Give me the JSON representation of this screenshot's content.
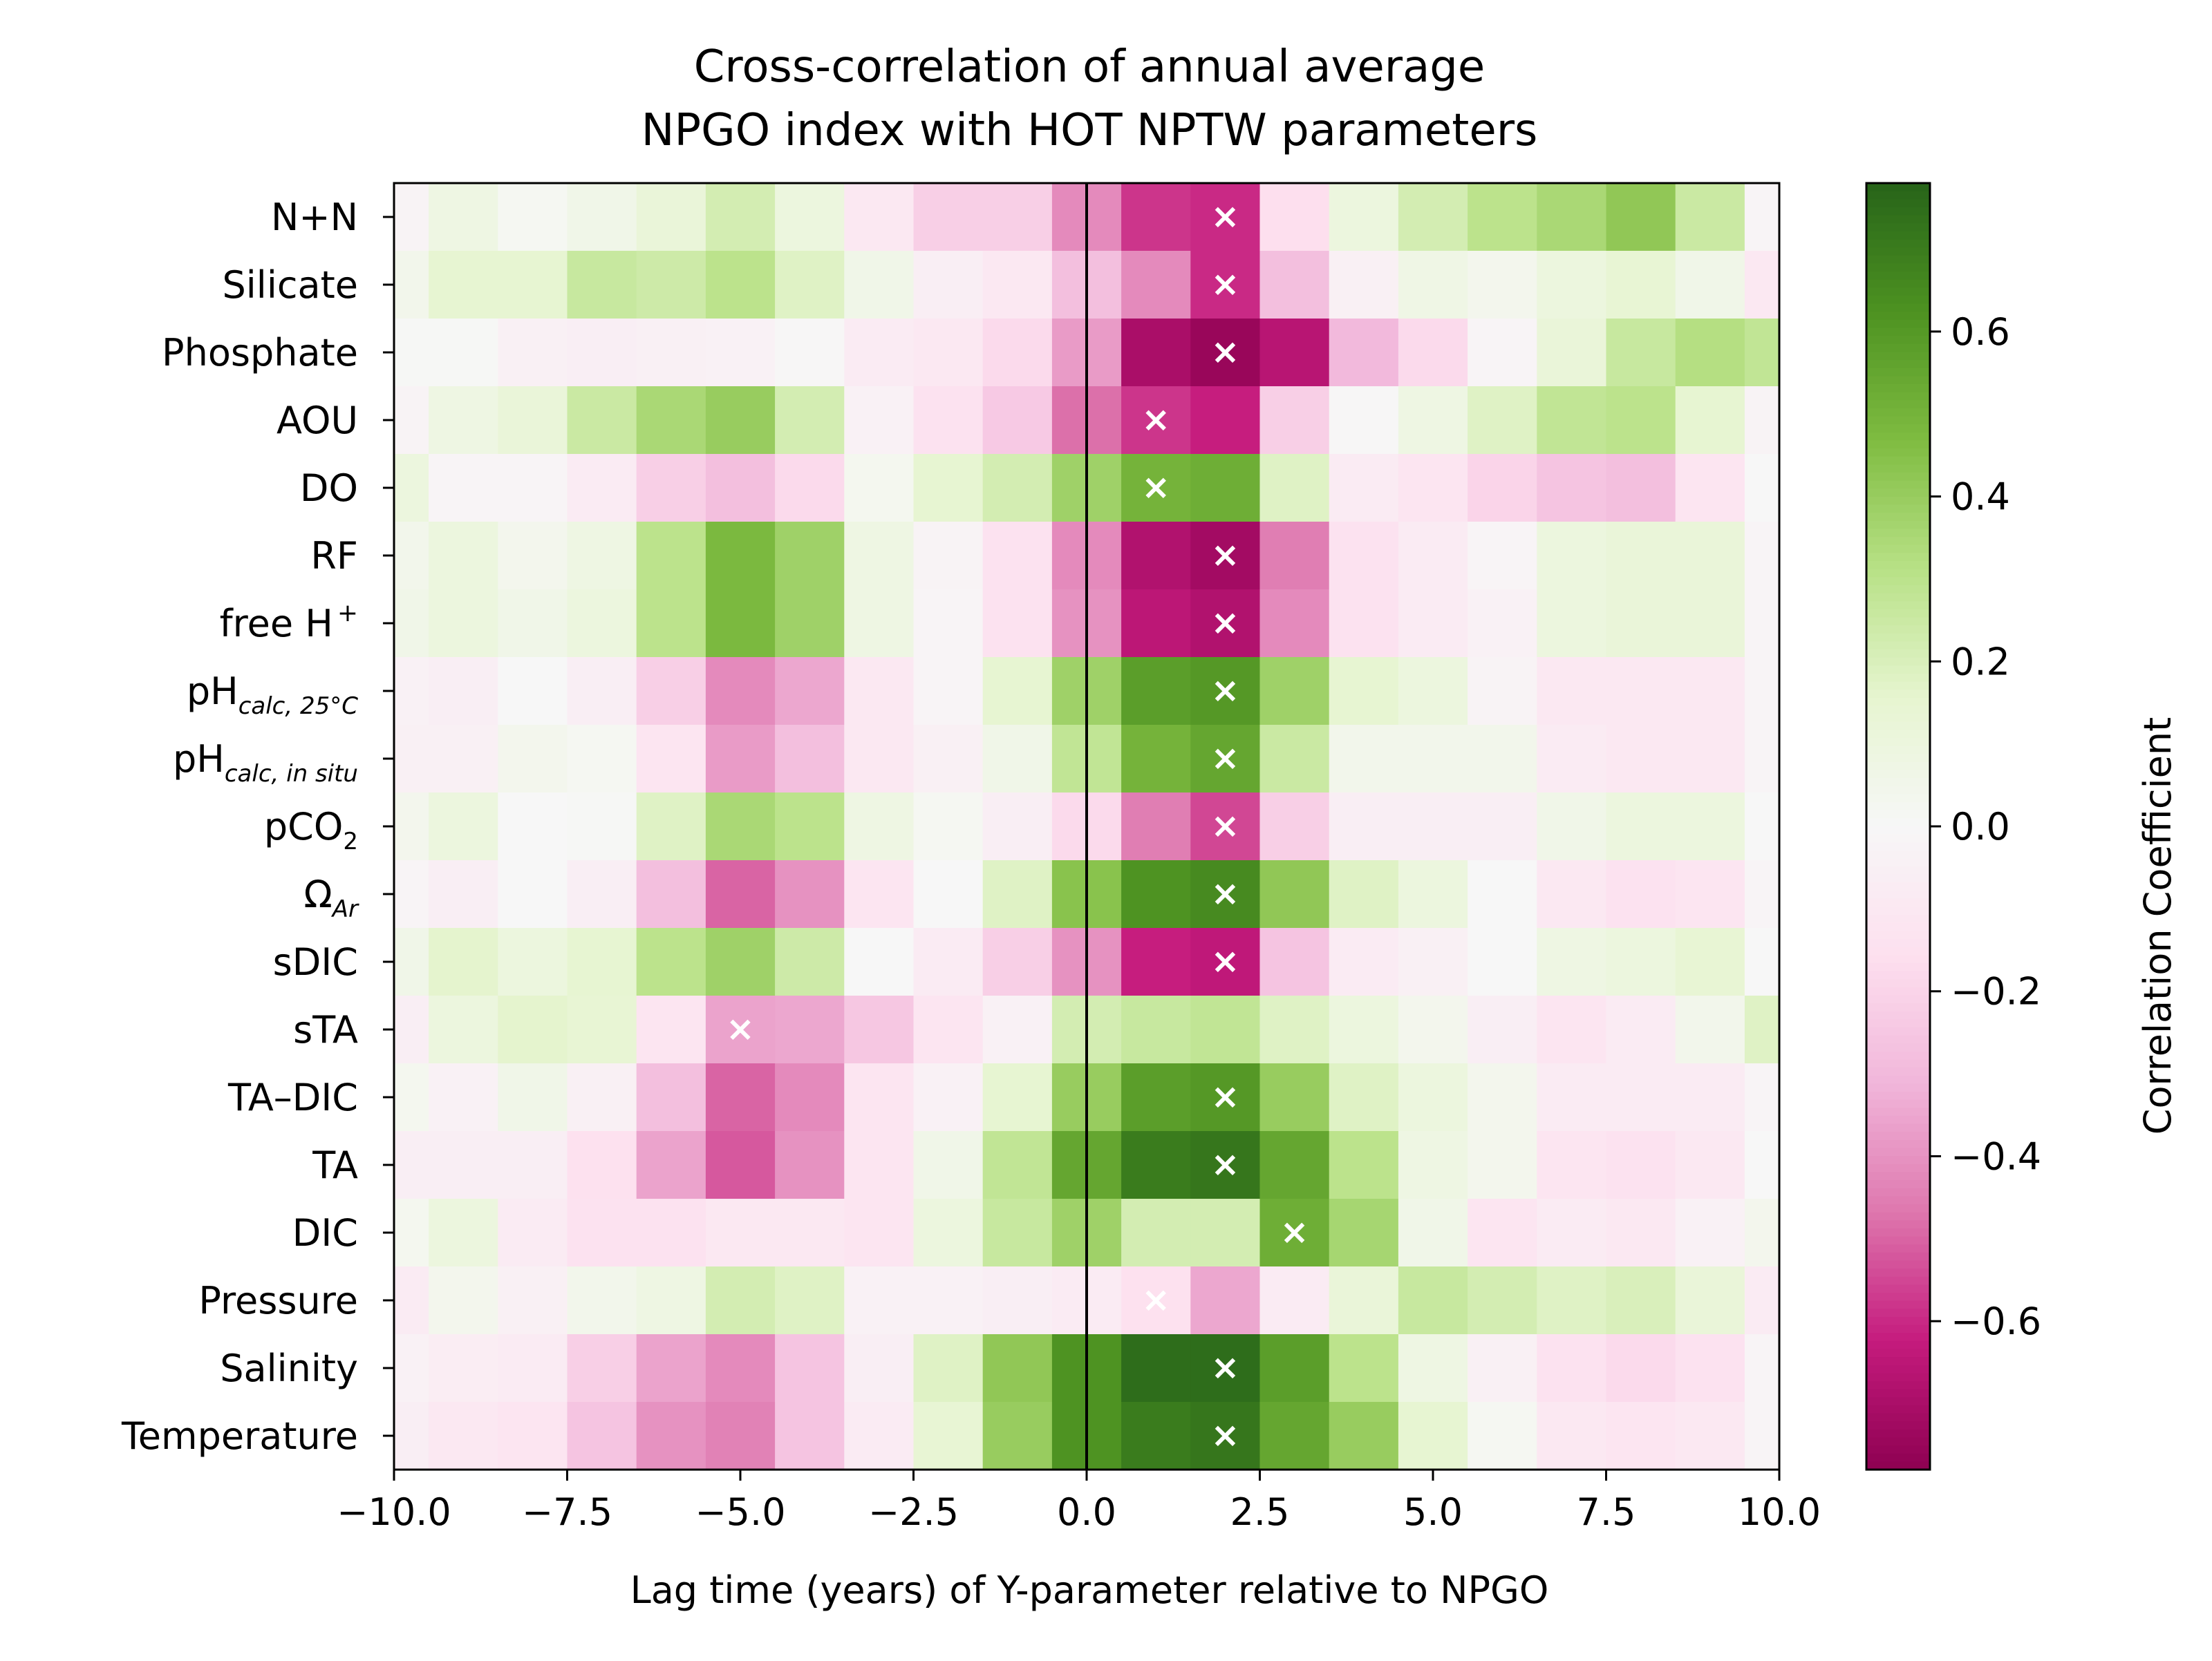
{
  "chart_data": {
    "type": "heatmap",
    "title_line1": "Cross-correlation of annual average",
    "title_line2": "NPGO index with HOT NPTW parameters",
    "xlabel": "Lag time (years) of Y-parameter relative to NPGO",
    "colorbar_label": "Correlation Coefficient",
    "colormap": "PiYG",
    "vmin": -0.78,
    "vmax": 0.78,
    "xlim": [
      -10,
      10
    ],
    "x_ticks": [
      -10,
      -7.5,
      -5,
      -2.5,
      0,
      2.5,
      5,
      7.5,
      10
    ],
    "x_tick_labels": [
      "−10.0",
      "−7.5",
      "−5.0",
      "−2.5",
      "0.0",
      "2.5",
      "5.0",
      "7.5",
      "10.0"
    ],
    "colorbar_ticks": [
      -0.6,
      -0.4,
      -0.2,
      0.0,
      0.2,
      0.4,
      0.6
    ],
    "colorbar_tick_labels": [
      "−0.6",
      "−0.4",
      "−0.2",
      "0.0",
      "0.2",
      "0.4",
      "0.6"
    ],
    "lags": [
      -10,
      -9,
      -8,
      -7,
      -6,
      -5,
      -4,
      -3,
      -2,
      -1,
      0,
      1,
      2,
      3,
      4,
      5,
      6,
      7,
      8,
      9,
      10
    ],
    "marker_symbol": "×",
    "rows": [
      {
        "label": "N+N",
        "sub": "",
        "sup": "",
        "values": [
          -0.03,
          0.08,
          0.02,
          0.06,
          0.12,
          0.22,
          0.1,
          -0.1,
          -0.22,
          -0.22,
          -0.42,
          -0.58,
          -0.6,
          -0.16,
          0.1,
          0.22,
          0.3,
          0.35,
          0.42,
          0.25,
          -0.02
        ],
        "marker_lag": 2
      },
      {
        "label": "Silicate",
        "sub": "",
        "sup": "",
        "values": [
          0.05,
          0.15,
          0.15,
          0.26,
          0.24,
          0.3,
          0.18,
          0.06,
          -0.06,
          -0.1,
          -0.28,
          -0.42,
          -0.6,
          -0.28,
          -0.05,
          0.07,
          0.04,
          0.1,
          0.14,
          0.06,
          -0.1
        ],
        "marker_lag": 2
      },
      {
        "label": "Phosphate",
        "sub": "",
        "sup": "",
        "values": [
          0.01,
          0.01,
          -0.05,
          -0.06,
          -0.05,
          -0.04,
          -0.01,
          -0.08,
          -0.1,
          -0.18,
          -0.38,
          -0.7,
          -0.75,
          -0.66,
          -0.3,
          -0.18,
          -0.02,
          0.12,
          0.26,
          0.32,
          0.28
        ],
        "marker_lag": 2
      },
      {
        "label": "AOU",
        "sub": "",
        "sup": "",
        "values": [
          -0.03,
          0.08,
          0.12,
          0.25,
          0.35,
          0.4,
          0.22,
          -0.04,
          -0.14,
          -0.24,
          -0.48,
          -0.58,
          -0.62,
          -0.22,
          -0.01,
          0.08,
          0.18,
          0.28,
          0.3,
          0.15,
          -0.03
        ],
        "marker_lag": 1
      },
      {
        "label": "DO",
        "sub": "",
        "sup": "",
        "values": [
          0.1,
          -0.02,
          -0.02,
          -0.08,
          -0.22,
          -0.28,
          -0.18,
          0.03,
          0.15,
          0.22,
          0.38,
          0.5,
          0.52,
          0.18,
          -0.08,
          -0.12,
          -0.2,
          -0.26,
          -0.28,
          -0.12,
          0.0
        ],
        "marker_lag": 1
      },
      {
        "label": "RF",
        "sub": "",
        "sup": "",
        "values": [
          0.05,
          0.1,
          0.04,
          0.08,
          0.3,
          0.48,
          0.38,
          0.08,
          -0.03,
          -0.14,
          -0.42,
          -0.68,
          -0.72,
          -0.45,
          -0.14,
          -0.08,
          -0.02,
          0.1,
          0.12,
          0.12,
          -0.02
        ],
        "marker_lag": 2
      },
      {
        "label": "free H",
        "sub": "",
        "sup": "+",
        "values": [
          0.06,
          0.1,
          0.06,
          0.1,
          0.3,
          0.48,
          0.38,
          0.08,
          -0.02,
          -0.14,
          -0.4,
          -0.65,
          -0.68,
          -0.42,
          -0.14,
          -0.08,
          -0.04,
          0.1,
          0.12,
          0.12,
          -0.02
        ],
        "marker_lag": 2
      },
      {
        "label": "pH",
        "sub": "calc, 25°C",
        "sup": "",
        "values": [
          -0.04,
          -0.06,
          0.0,
          -0.06,
          -0.22,
          -0.42,
          -0.35,
          -0.1,
          -0.02,
          0.15,
          0.38,
          0.58,
          0.6,
          0.38,
          0.15,
          0.1,
          -0.03,
          -0.1,
          -0.1,
          -0.1,
          -0.02
        ],
        "marker_lag": 2
      },
      {
        "label": "pH",
        "sub": "calc, in situ",
        "sup": "",
        "values": [
          -0.05,
          -0.05,
          0.04,
          0.02,
          -0.12,
          -0.38,
          -0.28,
          -0.1,
          -0.05,
          0.06,
          0.28,
          0.5,
          0.55,
          0.25,
          0.05,
          0.05,
          0.05,
          -0.08,
          -0.1,
          -0.1,
          -0.02
        ],
        "marker_lag": 2
      },
      {
        "label": "pCO",
        "sub": "2",
        "sup": "",
        "values": [
          0.04,
          0.1,
          0.0,
          0.01,
          0.18,
          0.35,
          0.3,
          0.08,
          0.02,
          -0.06,
          -0.18,
          -0.45,
          -0.55,
          -0.22,
          -0.06,
          -0.06,
          -0.06,
          0.06,
          0.1,
          0.1,
          0.0
        ],
        "marker_lag": 2
      },
      {
        "label": "Ω",
        "sub": "Ar",
        "sup": "",
        "values": [
          -0.02,
          -0.06,
          0.0,
          -0.06,
          -0.28,
          -0.5,
          -0.4,
          -0.12,
          0.0,
          0.18,
          0.44,
          0.62,
          0.65,
          0.42,
          0.18,
          0.1,
          0.0,
          -0.1,
          -0.14,
          -0.12,
          -0.02
        ],
        "marker_lag": 2
      },
      {
        "label": "sDIC",
        "sub": "",
        "sup": "",
        "values": [
          0.06,
          0.16,
          0.1,
          0.15,
          0.3,
          0.38,
          0.24,
          0.0,
          -0.08,
          -0.22,
          -0.4,
          -0.62,
          -0.64,
          -0.26,
          -0.08,
          -0.05,
          0.0,
          0.08,
          0.1,
          0.14,
          0.0
        ],
        "marker_lag": 2
      },
      {
        "label": "sTA",
        "sub": "",
        "sup": "",
        "values": [
          -0.06,
          0.1,
          0.16,
          0.14,
          -0.12,
          -0.36,
          -0.35,
          -0.25,
          -0.12,
          -0.04,
          0.22,
          0.26,
          0.28,
          0.18,
          0.1,
          0.04,
          -0.06,
          -0.12,
          -0.08,
          0.05,
          0.18
        ],
        "marker_lag": -5
      },
      {
        "label": "TA–DIC",
        "sub": "",
        "sup": "",
        "values": [
          0.03,
          -0.04,
          0.06,
          -0.05,
          -0.28,
          -0.5,
          -0.42,
          -0.12,
          -0.04,
          0.15,
          0.4,
          0.58,
          0.6,
          0.4,
          0.18,
          0.1,
          0.04,
          -0.08,
          -0.08,
          -0.08,
          -0.02
        ],
        "marker_lag": 2
      },
      {
        "label": "TA",
        "sub": "",
        "sup": "",
        "values": [
          -0.06,
          -0.06,
          -0.06,
          -0.15,
          -0.36,
          -0.52,
          -0.4,
          -0.12,
          0.06,
          0.28,
          0.55,
          0.7,
          0.72,
          0.55,
          0.3,
          0.08,
          0.04,
          -0.12,
          -0.14,
          -0.1,
          0.0
        ],
        "marker_lag": 2
      },
      {
        "label": "DIC",
        "sub": "",
        "sup": "",
        "values": [
          0.03,
          0.1,
          -0.08,
          -0.14,
          -0.14,
          -0.1,
          -0.1,
          -0.12,
          0.1,
          0.26,
          0.38,
          0.22,
          0.22,
          0.52,
          0.36,
          0.06,
          -0.12,
          -0.08,
          -0.1,
          -0.04,
          0.04
        ],
        "marker_lag": 3
      },
      {
        "label": "Pressure",
        "sub": "",
        "sup": "",
        "values": [
          -0.08,
          0.04,
          -0.05,
          0.05,
          0.08,
          0.22,
          0.18,
          -0.04,
          -0.04,
          -0.06,
          -0.08,
          -0.15,
          -0.35,
          -0.08,
          0.12,
          0.26,
          0.22,
          0.18,
          0.2,
          0.12,
          -0.08
        ],
        "marker_lag": 1
      },
      {
        "label": "Salinity",
        "sub": "",
        "sup": "",
        "values": [
          -0.04,
          -0.07,
          -0.08,
          -0.22,
          -0.36,
          -0.42,
          -0.26,
          -0.06,
          0.18,
          0.42,
          0.62,
          0.75,
          0.75,
          0.58,
          0.3,
          0.08,
          -0.05,
          -0.14,
          -0.18,
          -0.14,
          -0.02
        ],
        "marker_lag": 2
      },
      {
        "label": "Temperature",
        "sub": "",
        "sup": "",
        "values": [
          -0.06,
          -0.1,
          -0.12,
          -0.26,
          -0.4,
          -0.44,
          -0.26,
          -0.08,
          0.14,
          0.4,
          0.62,
          0.7,
          0.72,
          0.55,
          0.4,
          0.15,
          0.02,
          -0.1,
          -0.12,
          -0.1,
          -0.02
        ],
        "marker_lag": 2
      }
    ]
  }
}
